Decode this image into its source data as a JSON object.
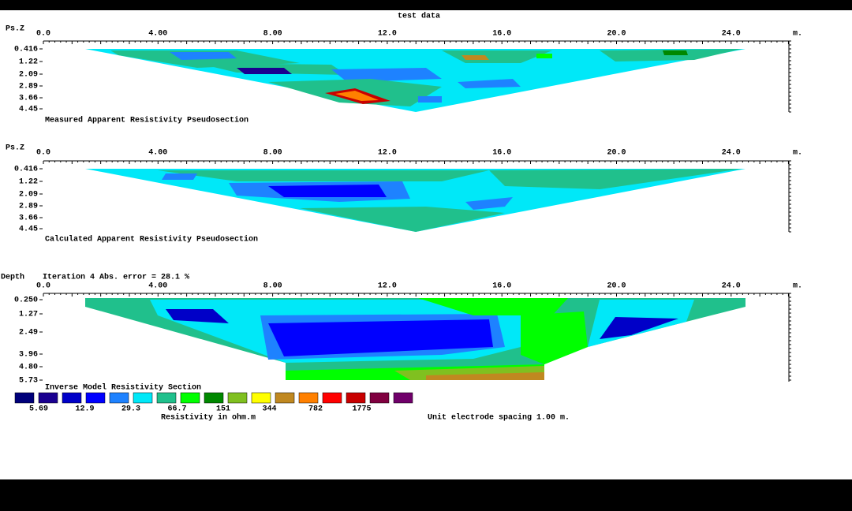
{
  "title": "test data",
  "panels": [
    {
      "y_label": "Ps.Z",
      "x_ticks": [
        "0.0",
        "4.00",
        "8.00",
        "12.0",
        "16.0",
        "20.0",
        "24.0"
      ],
      "x_unit": "m.",
      "y_ticks": [
        "0.416",
        "1.22",
        "2.09",
        "2.89",
        "3.66",
        "4.45"
      ],
      "caption": "Measured Apparent Resistivity Pseudosection"
    },
    {
      "y_label": "Ps.Z",
      "x_ticks": [
        "0.0",
        "4.00",
        "8.00",
        "12.0",
        "16.0",
        "20.0",
        "24.0"
      ],
      "x_unit": "m.",
      "y_ticks": [
        "0.416",
        "1.22",
        "2.09",
        "2.89",
        "3.66",
        "4.45"
      ],
      "caption": "Calculated Apparent Resistivity Pseudosection"
    },
    {
      "y_label": "Depth",
      "note": "Iteration 4 Abs. error = 28.1 %",
      "x_ticks": [
        "0.0",
        "4.00",
        "8.00",
        "12.0",
        "16.0",
        "20.0",
        "24.0"
      ],
      "x_unit": "m.",
      "y_ticks": [
        "0.250",
        "1.27",
        "2.49",
        "3.96",
        "4.80",
        "5.73"
      ],
      "caption": "Inverse Model Resistivity Section"
    }
  ],
  "legend": {
    "colors": [
      "#00007a",
      "#1a0090",
      "#0000c8",
      "#0000ff",
      "#1e82ff",
      "#00e8f8",
      "#20c08c",
      "#00ff00",
      "#008800",
      "#80c020",
      "#ffff00",
      "#c08820",
      "#ff8000",
      "#ff0000",
      "#c80000",
      "#800040",
      "#70006a"
    ],
    "labels": [
      "5.69",
      "12.9",
      "29.3",
      "66.7",
      "151",
      "344",
      "782",
      "1775"
    ],
    "unit": "Resistivity in ohm.m"
  },
  "footer": "Unit electrode spacing 1.00 m."
}
